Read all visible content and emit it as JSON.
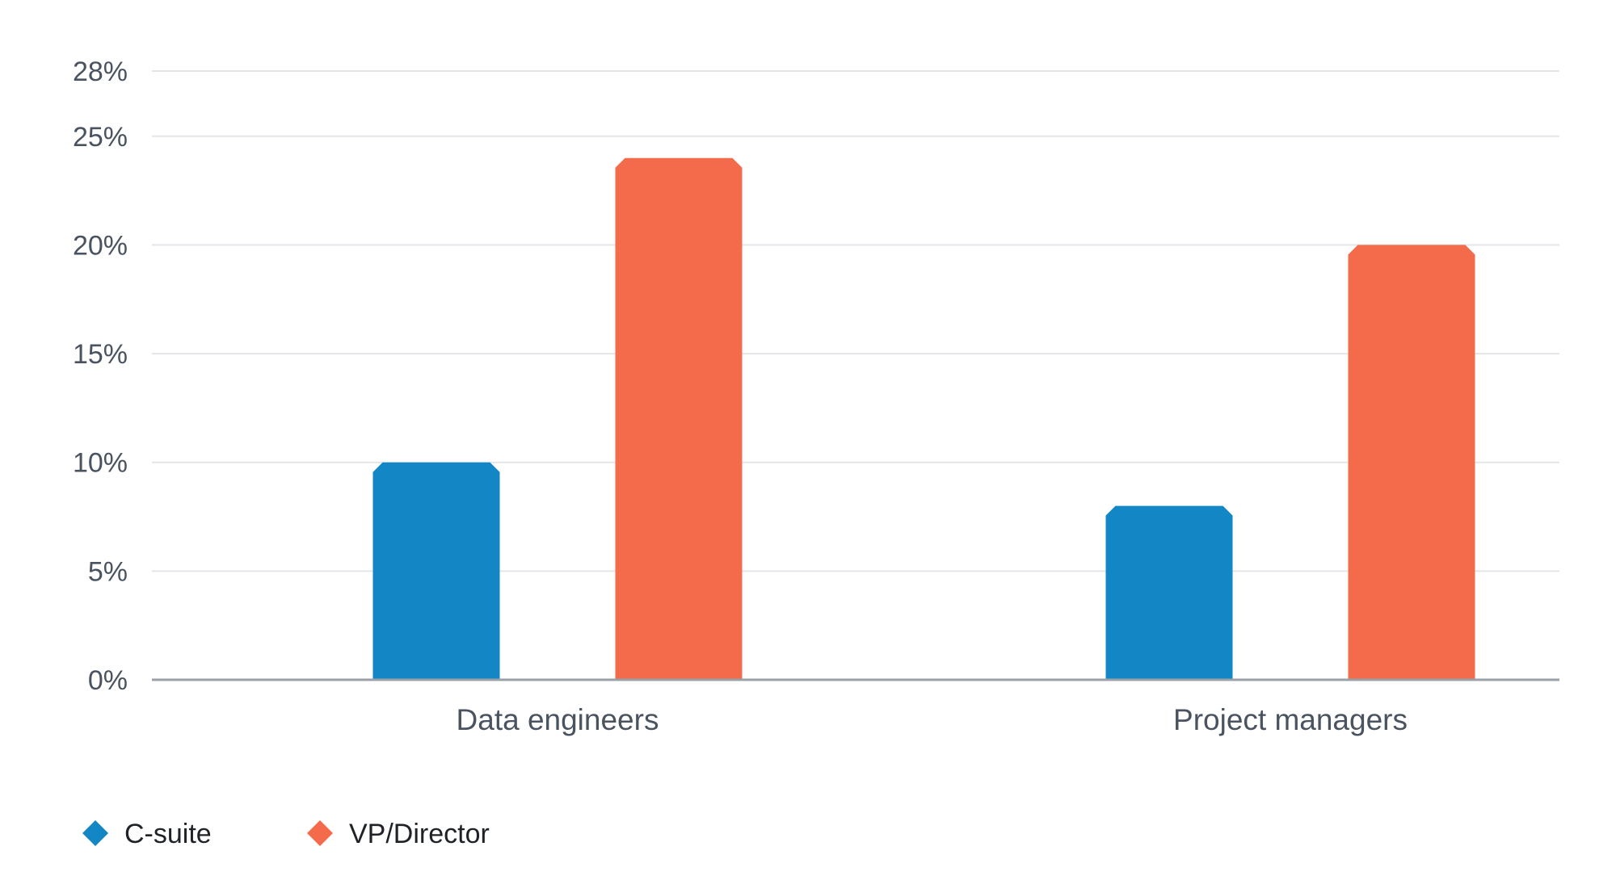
{
  "chart_data": {
    "type": "bar",
    "categories": [
      "Data engineers",
      "Project managers"
    ],
    "series": [
      {
        "name": "C-suite",
        "color": "#1386c6",
        "values": [
          10,
          8
        ]
      },
      {
        "name": "VP/Director",
        "color": "#f46b4c",
        "values": [
          24,
          20
        ]
      }
    ],
    "y_ticks": [
      0,
      5,
      10,
      15,
      20,
      25,
      28
    ],
    "y_tick_labels": [
      "0%",
      "5%",
      "10%",
      "15%",
      "20%",
      "25%",
      "28%"
    ],
    "ylim": [
      0,
      28
    ],
    "grid": true,
    "legend_position": "bottom-left"
  }
}
